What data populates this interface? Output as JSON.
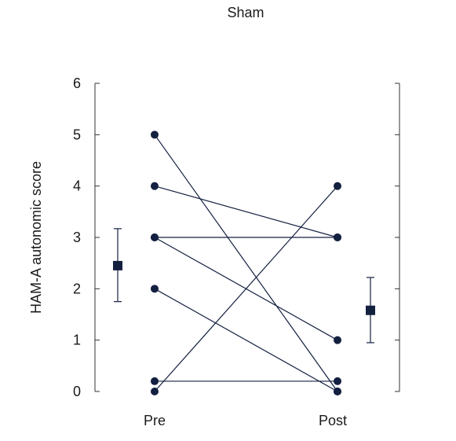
{
  "chart_data": {
    "type": "scatter",
    "title": "Sham",
    "ylabel": "HAM-A autonomic score",
    "xlabel": "",
    "categories": [
      "Pre",
      "Post"
    ],
    "ylim": [
      0,
      6
    ],
    "yticks": [
      0,
      1,
      2,
      3,
      4,
      5,
      6
    ],
    "grid": false,
    "legend": "none",
    "color": "#142040",
    "subjects": [
      {
        "pre": 5,
        "post": 0
      },
      {
        "pre": 4,
        "post": 3
      },
      {
        "pre": 3,
        "post": 3
      },
      {
        "pre": 3,
        "post": 1
      },
      {
        "pre": 2,
        "post": 0
      },
      {
        "pre": 0.2,
        "post": 0.2
      },
      {
        "pre": 0,
        "post": 4
      }
    ],
    "summary": {
      "pre": {
        "mean": 2.45,
        "low": 1.75,
        "high": 3.17
      },
      "post": {
        "mean": 1.58,
        "low": 0.95,
        "high": 2.22
      }
    }
  }
}
